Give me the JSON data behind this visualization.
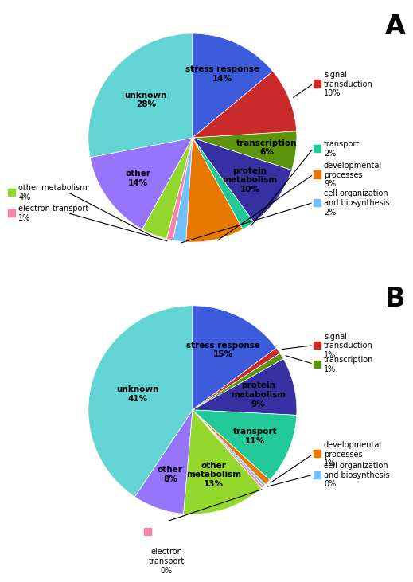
{
  "chart_A": {
    "values": [
      14,
      10,
      6,
      10,
      2,
      9,
      2,
      1,
      4,
      14,
      28
    ],
    "colors": [
      "#3b5bdb",
      "#c92a2a",
      "#5c940d",
      "#3730a3",
      "#20c997",
      "#e67700",
      "#74c0fc",
      "#f783ac",
      "#94d82d",
      "#9775fa",
      "#63d4d4"
    ],
    "inside_labels": {
      "0": [
        "stress response\n14%",
        0.68
      ],
      "2": [
        "transcription\n6%",
        0.72
      ],
      "3": [
        "protein\nmetabolism\n10%",
        0.68
      ],
      "9": [
        "other\n14%",
        0.65
      ],
      "10": [
        "unknown\n28%",
        0.58
      ]
    },
    "right_annotations": [
      [
        1,
        "signal\ntransduction\n10%",
        "#c92a2a",
        1.18,
        0.52
      ],
      [
        4,
        "transport\n2%",
        "#20c997",
        1.18,
        -0.1
      ],
      [
        5,
        "developmental\nprocesses\n9%",
        "#e67700",
        1.18,
        -0.35
      ],
      [
        6,
        "cell organization\nand biosynthesis\n2%",
        "#74c0fc",
        1.18,
        -0.62
      ]
    ],
    "left_annotations": [
      [
        8,
        "other metabolism\n4%",
        "#94d82d",
        -1.75,
        -0.52
      ],
      [
        7,
        "electron transport\n1%",
        "#f783ac",
        -1.75,
        -0.72
      ]
    ]
  },
  "chart_B": {
    "values": [
      15,
      1,
      1,
      9,
      11,
      1,
      0.4,
      0.4,
      13,
      8,
      41
    ],
    "colors": [
      "#3b5bdb",
      "#c92a2a",
      "#5c940d",
      "#3730a3",
      "#20c997",
      "#e67700",
      "#74c0fc",
      "#f783ac",
      "#94d82d",
      "#9775fa",
      "#63d4d4"
    ],
    "inside_labels": {
      "0": [
        "stress response\n15%",
        0.65
      ],
      "3": [
        "protein\nmetabolism\n9%",
        0.65
      ],
      "4": [
        "transport\n11%",
        0.65
      ],
      "8": [
        "other\nmetabolism\n13%",
        0.65
      ],
      "9": [
        "other\n8%",
        0.65
      ],
      "10": [
        "unknown\n41%",
        0.55
      ]
    },
    "right_annotations": [
      [
        1,
        "signal\ntransduction\n1%",
        "#c92a2a",
        1.18,
        0.62
      ],
      [
        2,
        "transcription\n1%",
        "#5c940d",
        1.18,
        0.44
      ],
      [
        5,
        "developmental\nprocesses\n1%",
        "#e67700",
        1.18,
        -0.42
      ],
      [
        6,
        "cell organization\nand biosynthesis\n0%",
        "#74c0fc",
        1.18,
        -0.62
      ]
    ],
    "bottom_annotations": [
      [
        7,
        "electron\ntransport\n0%",
        "#f783ac",
        -0.25,
        -1.32
      ]
    ]
  },
  "fontsize_inner": 7.5,
  "fontsize_outer": 7.0,
  "square_size": 0.07
}
